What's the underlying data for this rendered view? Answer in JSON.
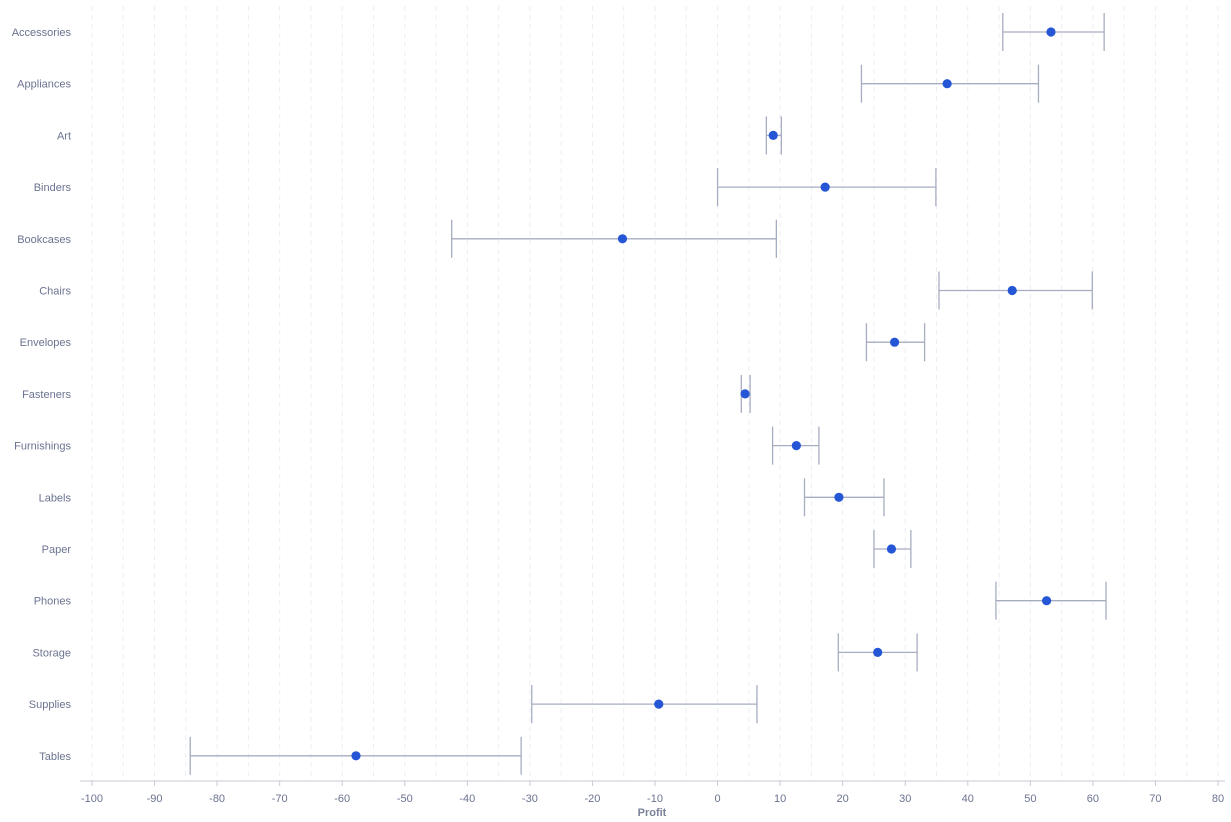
{
  "chart_data": {
    "type": "scatter",
    "subtype": "dot-with-error-bars",
    "orientation": "horizontal",
    "title": "",
    "xlabel": "Profit",
    "ylabel": "",
    "xlim": [
      -100,
      80
    ],
    "x_ticks": [
      -100,
      -90,
      -80,
      -70,
      -60,
      -50,
      -40,
      -30,
      -20,
      -10,
      0,
      10,
      20,
      30,
      40,
      50,
      60,
      70,
      80
    ],
    "grid": "vertical dashed",
    "legend": "none",
    "colors": {
      "point": "#2456d6",
      "error_bar": "#a7adc0",
      "grid": "#eceef3",
      "axis": "#c7cbd6",
      "text": "#6b7390"
    },
    "categories": [
      "Accessories",
      "Appliances",
      "Art",
      "Binders",
      "Bookcases",
      "Chairs",
      "Envelopes",
      "Fasteners",
      "Furnishings",
      "Labels",
      "Paper",
      "Phones",
      "Storage",
      "Supplies",
      "Tables"
    ],
    "series": [
      {
        "values": [
          53.3,
          36.7,
          8.9,
          17.2,
          -15.2,
          47.1,
          28.3,
          4.4,
          12.6,
          19.4,
          27.8,
          52.6,
          25.6,
          -9.4,
          -57.8
        ],
        "lower": [
          45.6,
          23.0,
          7.8,
          0.0,
          -42.5,
          35.4,
          23.8,
          3.8,
          8.8,
          13.9,
          25.0,
          44.5,
          19.3,
          -29.7,
          -84.3
        ],
        "upper": [
          61.8,
          51.3,
          10.2,
          34.9,
          9.4,
          59.9,
          33.1,
          5.2,
          16.2,
          26.6,
          30.9,
          62.1,
          31.9,
          6.3,
          -31.4
        ]
      }
    ]
  }
}
